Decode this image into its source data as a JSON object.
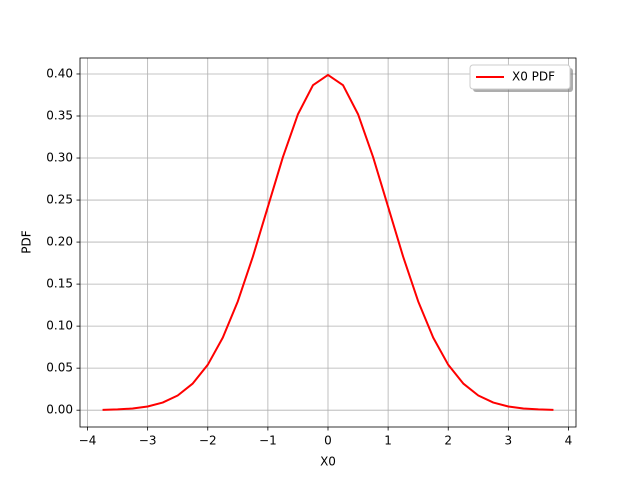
{
  "chart_data": {
    "type": "line",
    "xlabel": "X0",
    "ylabel": "PDF",
    "x": [
      -3.75,
      -3.5,
      -3.25,
      -3,
      -2.75,
      -2.5,
      -2.25,
      -2,
      -1.75,
      -1.5,
      -1.25,
      -1,
      -0.75,
      -0.5,
      -0.25,
      0,
      0.25,
      0.5,
      0.75,
      1,
      1.25,
      1.5,
      1.75,
      2,
      2.25,
      2.5,
      2.75,
      3,
      3.25,
      3.5,
      3.75
    ],
    "series": [
      {
        "name": "X0 PDF",
        "color": "#ff0000",
        "values": [
          0.0004,
          0.0009,
          0.002,
          0.0044,
          0.0091,
          0.0175,
          0.0317,
          0.054,
          0.0863,
          0.1295,
          0.1826,
          0.242,
          0.3011,
          0.3521,
          0.3867,
          0.3989,
          0.3867,
          0.3521,
          0.3011,
          0.242,
          0.1826,
          0.1295,
          0.0863,
          0.054,
          0.0317,
          0.0175,
          0.0091,
          0.0044,
          0.002,
          0.0009,
          0.0004
        ]
      }
    ],
    "xlim": [
      -4.125,
      4.125
    ],
    "xticks": [
      {
        "value": -4,
        "label": "−4"
      },
      {
        "value": -3,
        "label": "−3"
      },
      {
        "value": -2,
        "label": "−2"
      },
      {
        "value": -1,
        "label": "−1"
      },
      0,
      1,
      2,
      3,
      4
    ],
    "ylim": [
      -0.02,
      0.419
    ],
    "yticks": [
      {
        "value": 0,
        "label": "0.00"
      },
      {
        "value": 0.05,
        "label": "0.05"
      },
      {
        "value": 0.1,
        "label": "0.10"
      },
      {
        "value": 0.15,
        "label": "0.15"
      },
      {
        "value": 0.2,
        "label": "0.20"
      },
      {
        "value": 0.25,
        "label": "0.25"
      },
      {
        "value": 0.3,
        "label": "0.30"
      },
      {
        "value": 0.35,
        "label": "0.35"
      },
      {
        "value": 0.4,
        "label": "0.40"
      }
    ],
    "grid": true,
    "legend": "upper right"
  }
}
